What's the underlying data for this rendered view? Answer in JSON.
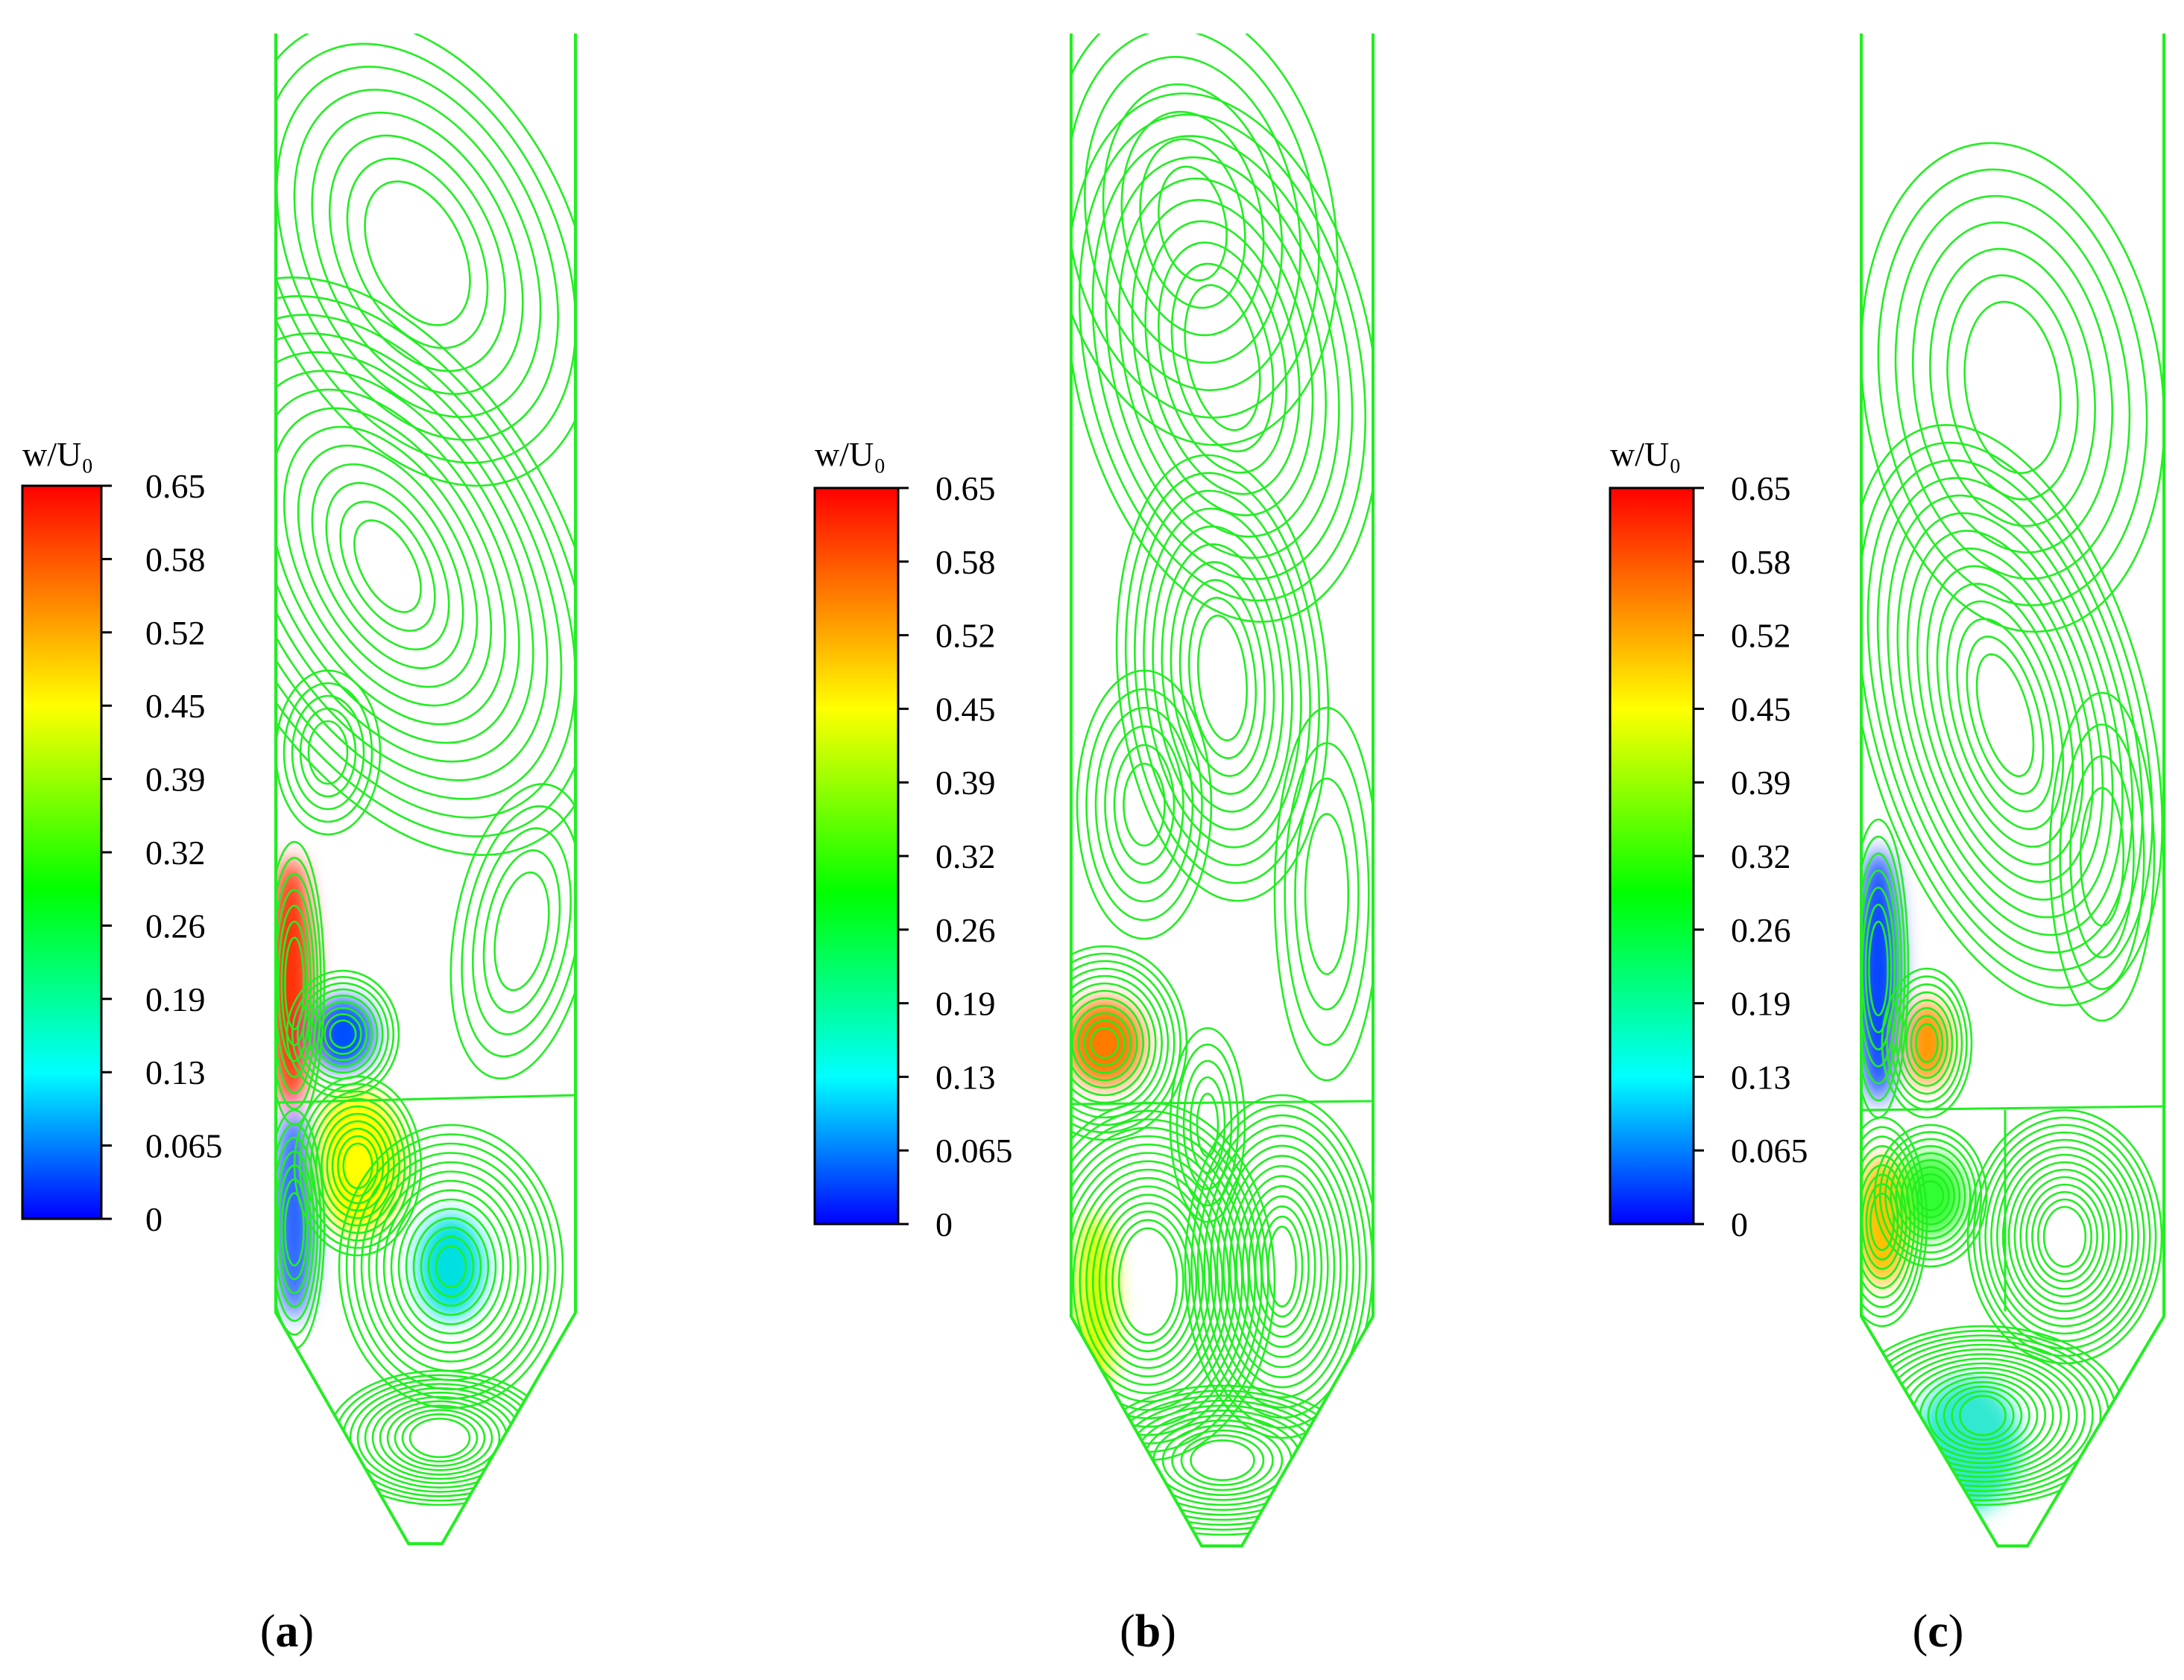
{
  "chart_data": [
    {
      "type": "contour",
      "panel_label": "a",
      "colorbar": {
        "title": "w/U₀",
        "range": [
          0,
          0.65
        ],
        "ticks": [
          "0.65",
          "0.58",
          "0.52",
          "0.45",
          "0.39",
          "0.32",
          "0.26",
          "0.19",
          "0.13",
          "0.065",
          "0"
        ]
      },
      "hotspots": [
        {
          "name": "left-wall jet",
          "level": 0.63
        },
        {
          "name": "vortex core",
          "level": 0.1
        },
        {
          "name": "lower vortex",
          "level": 0.48
        },
        {
          "name": "hopper left-wall band",
          "level": 0.1
        },
        {
          "name": "hopper core",
          "level": 0.2
        }
      ]
    },
    {
      "type": "contour",
      "panel_label": "b",
      "colorbar": {
        "title": "w/U₀",
        "range": [
          0,
          0.65
        ],
        "ticks": [
          "0.65",
          "0.58",
          "0.52",
          "0.45",
          "0.39",
          "0.32",
          "0.26",
          "0.19",
          "0.13",
          "0.065",
          "0"
        ]
      },
      "hotspots": [
        {
          "name": "inlet vortex",
          "level": 0.56
        },
        {
          "name": "hopper band",
          "level": 0.45
        }
      ]
    },
    {
      "type": "contour",
      "panel_label": "c",
      "colorbar": {
        "title": "w/U₀",
        "range": [
          0,
          0.65
        ],
        "ticks": [
          "0.65",
          "0.58",
          "0.52",
          "0.45",
          "0.39",
          "0.32",
          "0.26",
          "0.19",
          "0.13",
          "0.065",
          "0"
        ]
      },
      "hotspots": [
        {
          "name": "left-wall low band",
          "level": 0.05
        },
        {
          "name": "inner vortex",
          "level": 0.55
        },
        {
          "name": "lower left vortex",
          "level": 0.48
        },
        {
          "name": "lower cell",
          "level": 0.3
        },
        {
          "name": "hopper low band",
          "level": 0.18
        }
      ]
    }
  ],
  "colors": {
    "contour_line": "#22ee22",
    "colorscale": [
      "#0000ff",
      "#00ffff",
      "#00ff00",
      "#ffff00",
      "#ff8000",
      "#ff0000"
    ]
  }
}
